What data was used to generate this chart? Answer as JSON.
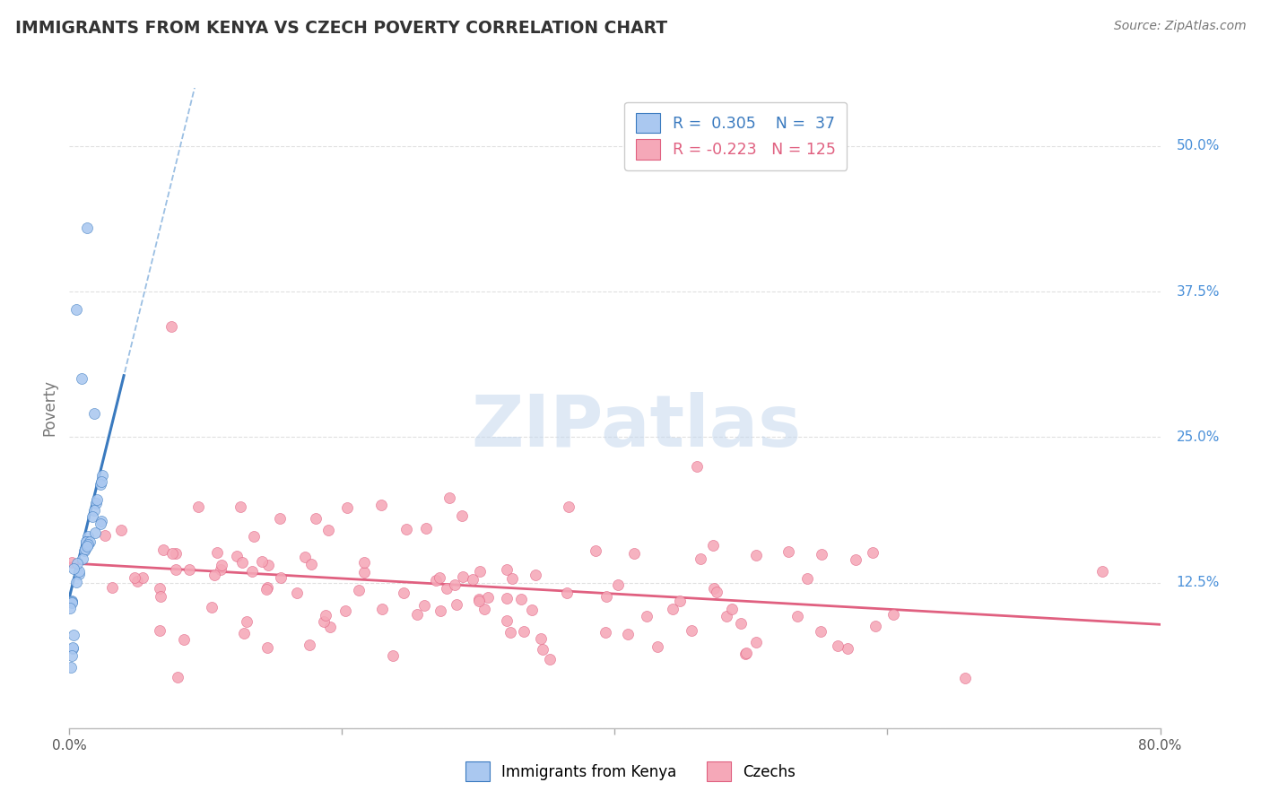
{
  "title": "IMMIGRANTS FROM KENYA VS CZECH POVERTY CORRELATION CHART",
  "source": "Source: ZipAtlas.com",
  "ylabel": "Poverty",
  "xlim": [
    0.0,
    0.8
  ],
  "ylim": [
    0.0,
    0.55
  ],
  "yticks": [
    0.0,
    0.125,
    0.25,
    0.375,
    0.5
  ],
  "ytick_labels": [
    "",
    "12.5%",
    "25.0%",
    "37.5%",
    "50.0%"
  ],
  "xticks": [
    0.0,
    0.2,
    0.4,
    0.6,
    0.8
  ],
  "xtick_labels": [
    "0.0%",
    "",
    "",
    "",
    "80.0%"
  ],
  "kenya_R": 0.305,
  "kenya_N": 37,
  "czech_R": -0.223,
  "czech_N": 125,
  "kenya_color": "#aac8f0",
  "kenya_line_color": "#3a7abf",
  "kenya_line_color_dash": "#90b8e0",
  "czech_color": "#f5a8b8",
  "czech_line_color": "#e06080",
  "background_color": "#ffffff",
  "watermark": "ZIPatlas",
  "title_color": "#333333",
  "source_color": "#777777",
  "ytick_color": "#4a90d9",
  "ylabel_color": "#777777",
  "grid_color": "#dddddd"
}
